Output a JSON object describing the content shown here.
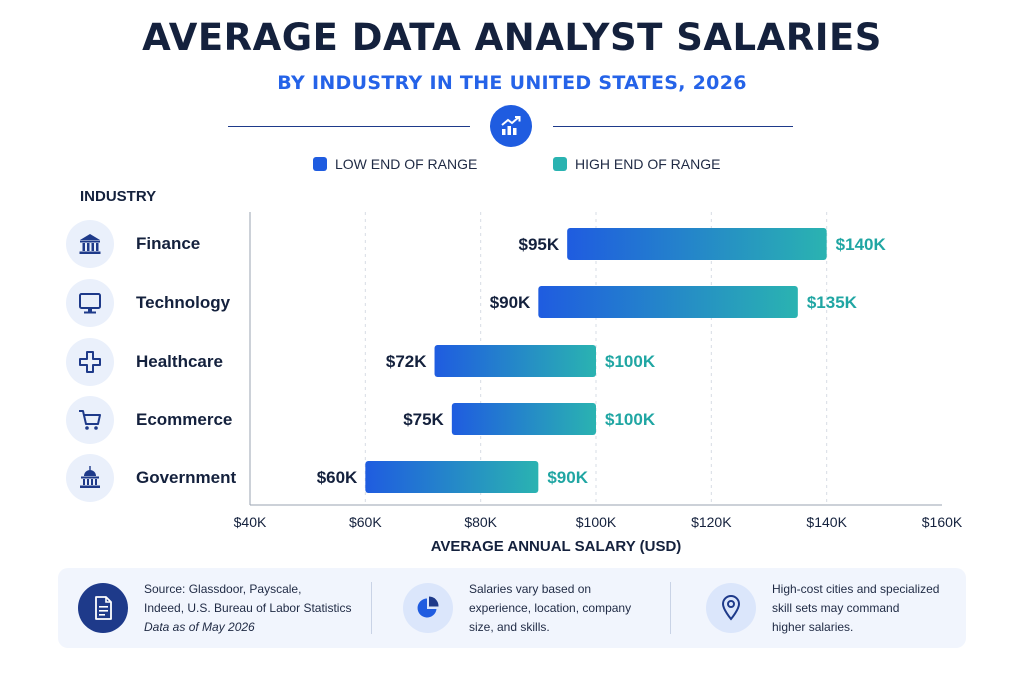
{
  "header": {
    "title": "AVERAGE DATA ANALYST SALARIES",
    "subtitle": "BY INDUSTRY IN THE UNITED STATES, 2026",
    "icon": "trend-chart-icon"
  },
  "legend": {
    "low_label": "LOW END OF RANGE",
    "high_label": "HIGH END OF RANGE"
  },
  "industry_header": "INDUSTRY",
  "industries": [
    {
      "label": "Finance",
      "icon": "bank-icon"
    },
    {
      "label": "Technology",
      "icon": "monitor-icon"
    },
    {
      "label": "Healthcare",
      "icon": "medical-cross-icon"
    },
    {
      "label": "Ecommerce",
      "icon": "shopping-cart-icon"
    },
    {
      "label": "Government",
      "icon": "capitol-building-icon"
    }
  ],
  "colors": {
    "low": "#1f5ce0",
    "high": "#2ab3b1",
    "low_label_text": "#14213d",
    "high_label_text": "#20a6a3",
    "grid": "#d7dce5",
    "axis": "#9aa3b2"
  },
  "chart_data": {
    "type": "bar",
    "orientation": "horizontal",
    "subtype": "range",
    "title": "AVERAGE DATA ANALYST SALARIES",
    "subtitle": "BY INDUSTRY IN THE UNITED STATES, 2026",
    "xlabel": "AVERAGE ANNUAL SALARY (USD)",
    "ylabel": "INDUSTRY",
    "categories": [
      "Finance",
      "Technology",
      "Healthcare",
      "Ecommerce",
      "Government"
    ],
    "series": [
      {
        "name": "LOW END OF RANGE",
        "values": [
          95000,
          90000,
          72000,
          75000,
          60000
        ]
      },
      {
        "name": "HIGH END OF RANGE",
        "values": [
          140000,
          135000,
          100000,
          100000,
          90000
        ]
      }
    ],
    "low_labels": [
      "$95K",
      "$90K",
      "$72K",
      "$75K",
      "$60K"
    ],
    "high_labels": [
      "$140K",
      "$135K",
      "$100K",
      "$100K",
      "$90K"
    ],
    "xlim": [
      40000,
      160000
    ],
    "x_ticks": [
      40000,
      60000,
      80000,
      100000,
      120000,
      140000,
      160000
    ],
    "x_tick_labels": [
      "$40K",
      "$60K",
      "$80K",
      "$100K",
      "$120K",
      "$140K",
      "$160K"
    ],
    "grid": true,
    "legend_position": "top"
  },
  "footer": {
    "items": [
      {
        "icon": "document-icon",
        "lines": [
          "Source: Glassdoor, Payscale,",
          "Indeed, U.S. Bureau of Labor Statistics"
        ],
        "note": "Data as of May 2026"
      },
      {
        "icon": "pie-chart-icon",
        "lines": [
          "Salaries vary based on",
          "experience, location, company",
          "size, and skills."
        ]
      },
      {
        "icon": "location-pin-icon",
        "lines": [
          "High-cost cities and specialized",
          "skill sets may command",
          "higher salaries."
        ]
      }
    ]
  }
}
